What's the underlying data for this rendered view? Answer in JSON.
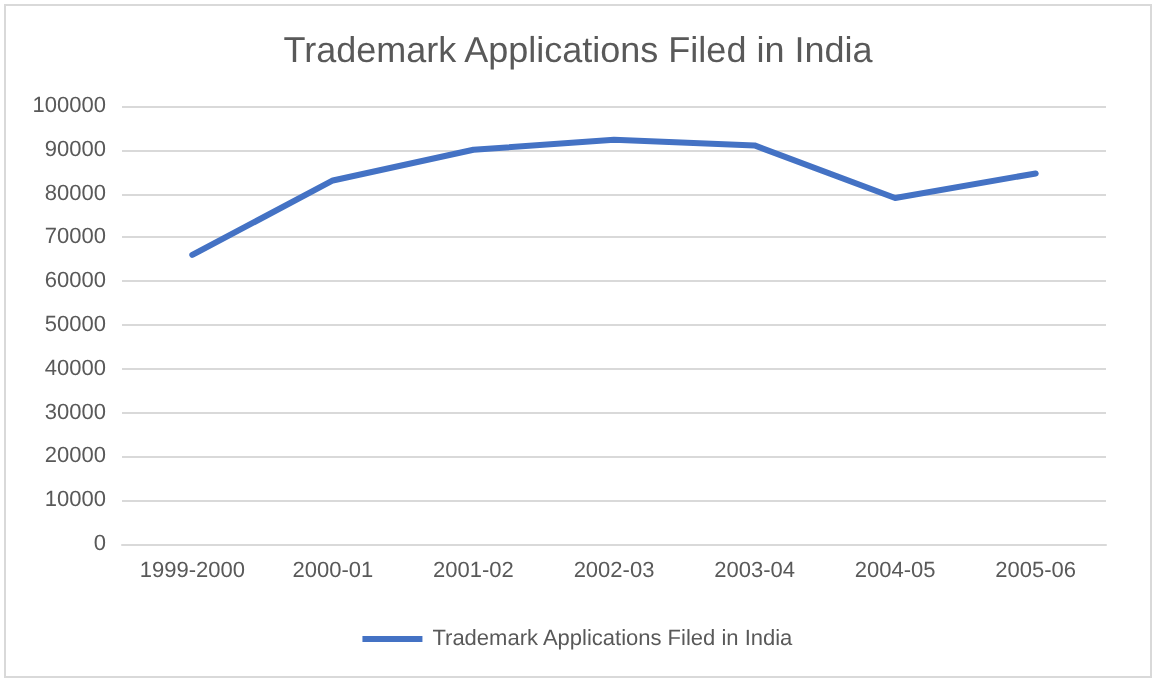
{
  "chart_data": {
    "type": "line",
    "title": "Trademark Applications Filed in India",
    "categories": [
      "1999-2000",
      "2000-01",
      "2001-02",
      "2002-03",
      "2003-04",
      "2004-05",
      "2005-06"
    ],
    "series": [
      {
        "name": "Trademark Applications Filed in India",
        "color": "#4472c4",
        "values": [
          66000,
          83000,
          90000,
          92300,
          91000,
          79000,
          84600
        ]
      }
    ],
    "ylim": [
      0,
      100000
    ],
    "yticks": [
      0,
      10000,
      20000,
      30000,
      40000,
      50000,
      60000,
      70000,
      80000,
      90000,
      100000
    ],
    "grid": "y",
    "legend": "bottom",
    "marker": "none",
    "line_style": "solid"
  }
}
